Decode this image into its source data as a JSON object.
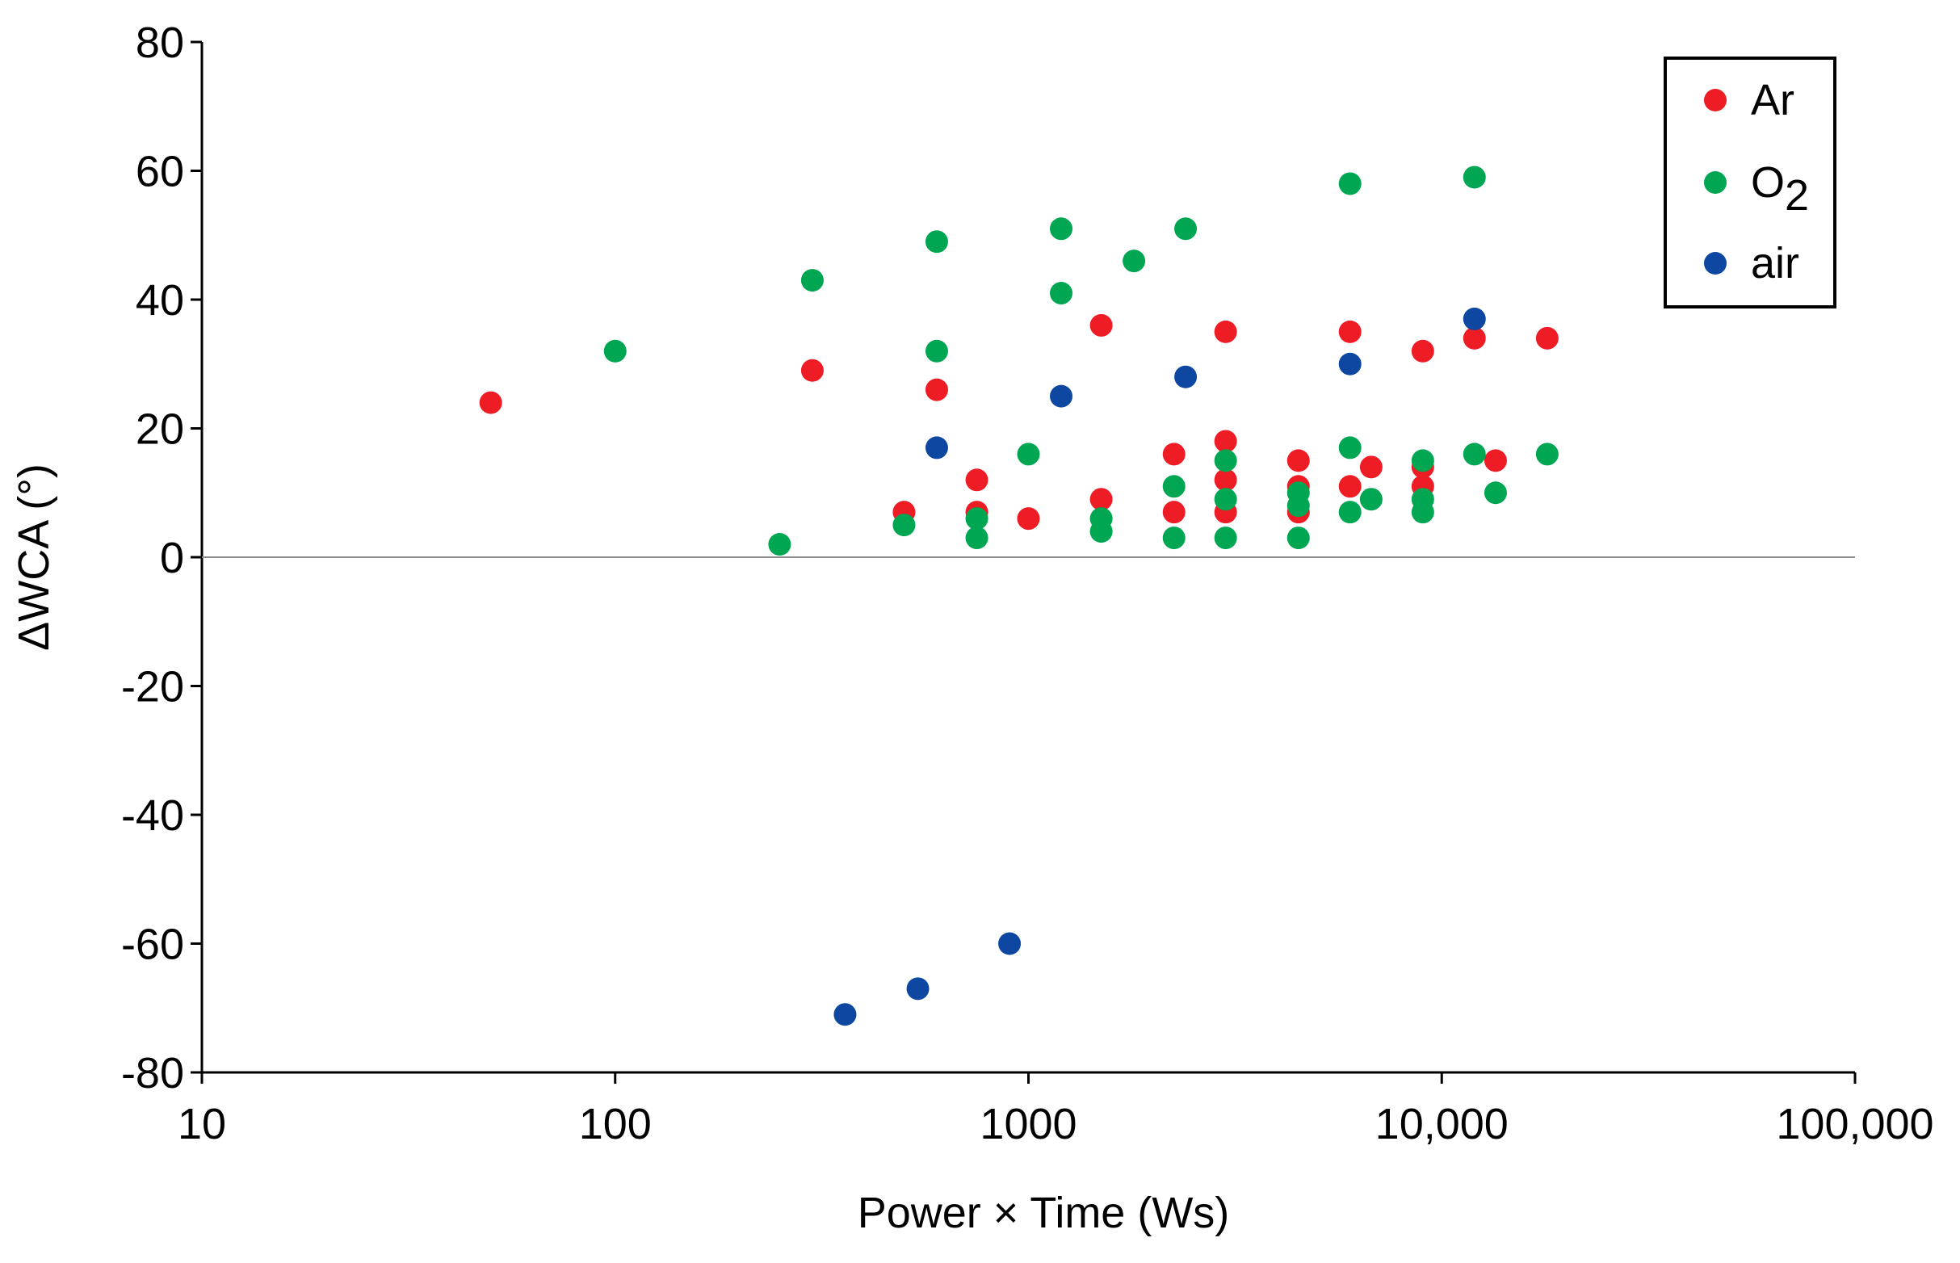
{
  "chart_data": {
    "type": "scatter",
    "title": "",
    "xlabel": "Power × Time (Ws)",
    "ylabel": "ΔWCA (°)",
    "xscale": "log",
    "xlim": [
      10,
      100000
    ],
    "ylim": [
      -80,
      80
    ],
    "x_ticks": [
      10,
      100,
      1000,
      10000,
      100000
    ],
    "x_tick_labels": [
      "10",
      "100",
      "1000",
      "10,000",
      "100,000"
    ],
    "y_ticks": [
      -80,
      -60,
      -40,
      -20,
      0,
      20,
      40,
      60,
      80
    ],
    "y_tick_labels": [
      "-80",
      "-60",
      "-40",
      "-20",
      "0",
      "20",
      "40",
      "60",
      "80"
    ],
    "zero_line": true,
    "grid": false,
    "legend_position": "top-right",
    "series": [
      {
        "name": "Ar",
        "color": "#ee1c25",
        "points": [
          [
            50,
            24
          ],
          [
            300,
            29
          ],
          [
            500,
            7
          ],
          [
            600,
            26
          ],
          [
            750,
            12
          ],
          [
            750,
            7
          ],
          [
            1000,
            6
          ],
          [
            1500,
            36
          ],
          [
            1500,
            9
          ],
          [
            2250,
            16
          ],
          [
            2250,
            7
          ],
          [
            3000,
            35
          ],
          [
            3000,
            18
          ],
          [
            3000,
            12
          ],
          [
            3000,
            7
          ],
          [
            4500,
            15
          ],
          [
            4500,
            11
          ],
          [
            4500,
            7
          ],
          [
            6000,
            35
          ],
          [
            6000,
            11
          ],
          [
            6750,
            14
          ],
          [
            9000,
            32
          ],
          [
            9000,
            14
          ],
          [
            9000,
            11
          ],
          [
            12000,
            34
          ],
          [
            13500,
            15
          ],
          [
            18000,
            34
          ]
        ]
      },
      {
        "name": "O2",
        "color": "#00a651",
        "points": [
          [
            100,
            32
          ],
          [
            250,
            2
          ],
          [
            300,
            43
          ],
          [
            500,
            5
          ],
          [
            600,
            49
          ],
          [
            600,
            32
          ],
          [
            750,
            6
          ],
          [
            750,
            3
          ],
          [
            1000,
            16
          ],
          [
            1200,
            51
          ],
          [
            1200,
            41
          ],
          [
            1500,
            6
          ],
          [
            1500,
            4
          ],
          [
            1800,
            46
          ],
          [
            2250,
            11
          ],
          [
            2250,
            3
          ],
          [
            2400,
            51
          ],
          [
            3000,
            15
          ],
          [
            3000,
            9
          ],
          [
            3000,
            3
          ],
          [
            4500,
            10
          ],
          [
            4500,
            8
          ],
          [
            4500,
            3
          ],
          [
            6000,
            58
          ],
          [
            6000,
            17
          ],
          [
            6000,
            7
          ],
          [
            6750,
            9
          ],
          [
            9000,
            15
          ],
          [
            9000,
            9
          ],
          [
            9000,
            7
          ],
          [
            12000,
            59
          ],
          [
            12000,
            16
          ],
          [
            13500,
            10
          ],
          [
            18000,
            16
          ]
        ]
      },
      {
        "name": "air",
        "color": "#0d47a1",
        "points": [
          [
            360,
            -71
          ],
          [
            540,
            -67
          ],
          [
            600,
            17
          ],
          [
            900,
            -60
          ],
          [
            1200,
            25
          ],
          [
            2400,
            28
          ],
          [
            6000,
            30
          ],
          [
            12000,
            37
          ]
        ]
      }
    ]
  }
}
